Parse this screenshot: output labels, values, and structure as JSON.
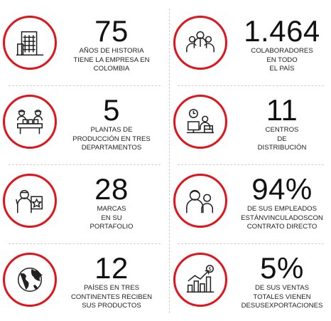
{
  "colors": {
    "accent": "#e1141b",
    "text": "#111111",
    "divider": "#cfcfcf"
  },
  "stats": [
    {
      "icon": "building-icon",
      "number": "75",
      "lines": [
        "AÑOS DE HISTORIA",
        "TIENE LA EMPRESA EN",
        "COLOMBIA"
      ]
    },
    {
      "icon": "team-icon",
      "number": "1.464",
      "lines": [
        "COLABORADORES",
        "EN TODO",
        "EL PAÍS"
      ]
    },
    {
      "icon": "factory-workers-icon",
      "number": "5",
      "lines": [
        "PLANTAS DE",
        "PRODUCCIÓN EN TRES",
        "DEPARTAMENTOS"
      ]
    },
    {
      "icon": "distribution-center-icon",
      "number": "11",
      "lines": [
        "CENTROS",
        "DE",
        "DISTRIBUCIÓN"
      ]
    },
    {
      "icon": "brand-presenter-icon",
      "number": "28",
      "lines": [
        "MARCAS",
        "EN SU",
        "PORTAFOLIO"
      ]
    },
    {
      "icon": "employees-icon",
      "number": "94%",
      "lines": [
        "DE SUS EMPLEADOS",
        "ESTÁNVINCULADOSCON",
        "CONTRATO DIRECTO"
      ]
    },
    {
      "icon": "globe-icon",
      "number": "12",
      "lines": [
        "PAÍSES EN TRES",
        "CONTINENTES RECIBEN",
        "SUS PRODUCTOS"
      ]
    },
    {
      "icon": "growth-chart-icon",
      "number": "5%",
      "lines": [
        "DE SUS VENTAS",
        "TOTALES VIENEN",
        "DESUSEXPORTACIONES"
      ]
    }
  ]
}
